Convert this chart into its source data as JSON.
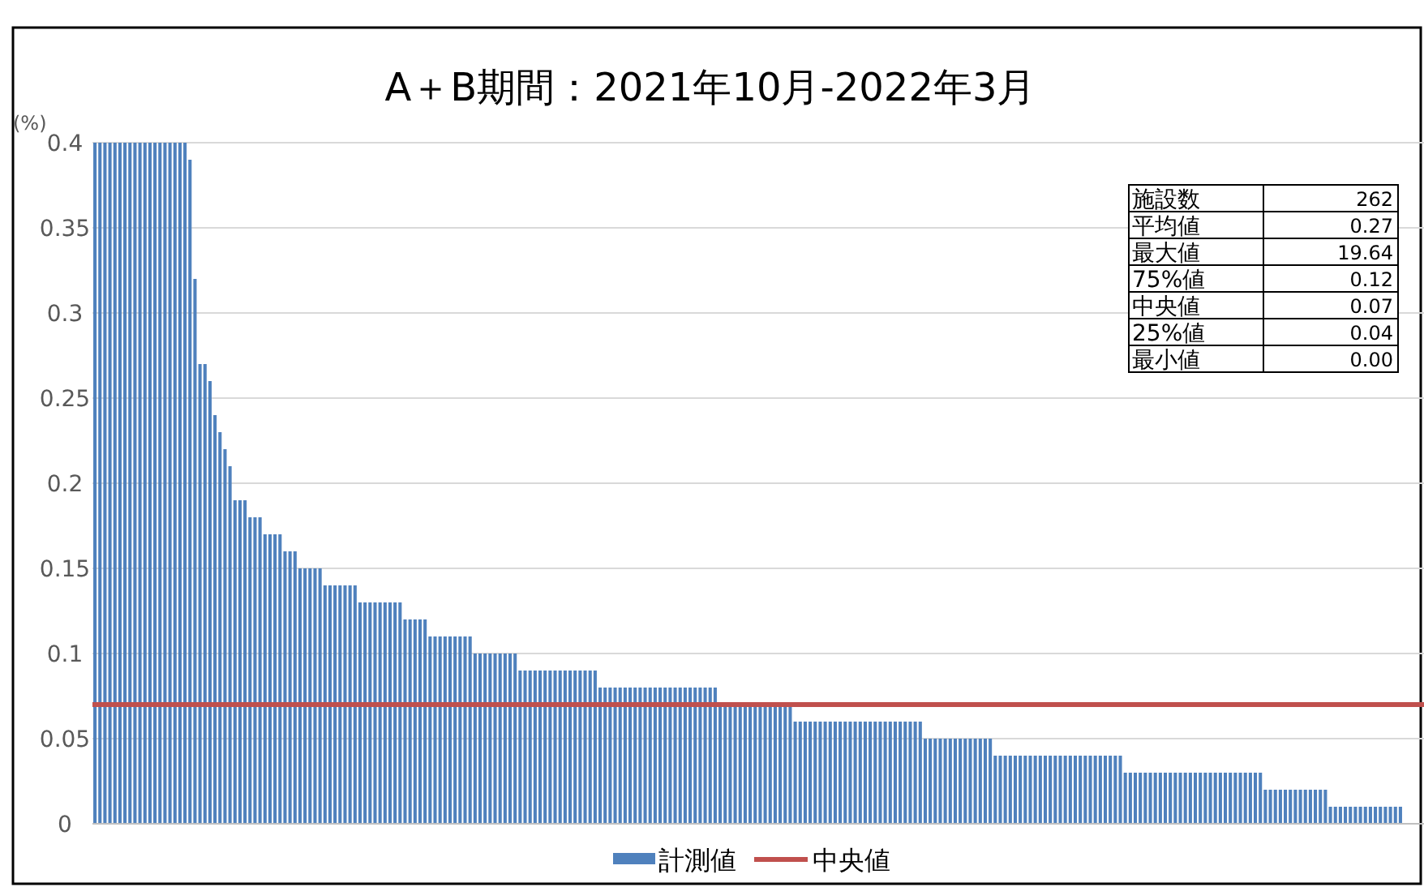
{
  "chart_data": {
    "type": "bar",
    "title": "A＋B期間：2021年10月-2022年3月",
    "ylabel": "(%)",
    "categories": [
      null,
      null,
      null,
      null,
      null,
      null,
      null,
      null,
      null,
      null,
      null,
      null,
      null,
      null,
      null,
      null,
      null,
      null,
      null,
      null,
      null,
      null,
      null,
      null,
      null,
      null,
      null,
      null,
      null,
      null,
      null,
      null,
      null,
      null,
      null,
      null,
      null,
      null,
      null,
      null,
      null,
      null,
      null,
      null,
      null,
      null,
      null,
      null,
      null,
      null,
      null,
      null,
      null,
      null,
      null,
      null,
      null,
      null,
      null,
      null,
      null,
      null,
      null,
      null,
      null,
      null,
      null,
      null,
      null,
      null,
      null,
      null,
      null,
      null,
      null,
      null,
      null,
      null,
      null,
      null,
      null,
      null,
      null,
      null,
      null,
      null,
      null,
      null,
      null,
      null,
      null,
      null,
      null,
      null,
      null,
      null,
      null,
      null,
      null,
      null,
      null,
      null,
      null,
      null,
      null,
      null,
      null,
      null,
      null,
      null,
      null,
      null,
      null,
      null,
      null,
      null,
      null,
      null,
      null,
      null,
      null,
      null,
      null,
      null,
      null,
      null,
      null,
      null,
      null,
      null,
      null,
      null,
      null,
      null,
      null,
      null,
      null,
      null,
      null,
      null,
      null,
      null,
      null,
      null,
      null,
      null,
      null,
      null,
      null,
      null,
      null,
      null,
      null,
      null,
      null,
      null,
      null,
      null,
      null,
      null,
      null,
      null,
      null,
      null,
      null,
      null,
      null,
      null,
      null,
      null,
      null,
      null,
      null,
      null,
      null,
      null,
      null,
      null,
      null,
      null,
      null,
      null,
      null,
      null,
      null,
      null,
      null,
      null,
      null,
      null,
      null,
      null,
      null,
      null,
      null,
      null,
      null,
      null,
      null,
      null,
      null,
      null,
      null,
      null,
      null,
      null,
      null,
      null,
      null,
      null,
      null,
      null,
      null,
      null,
      null,
      null,
      null,
      null,
      null,
      null,
      null,
      null,
      null,
      null,
      null,
      null,
      null,
      null,
      null,
      null,
      null,
      null,
      null,
      null,
      null,
      null,
      null,
      null,
      null,
      null,
      null,
      null,
      null,
      null,
      null,
      null,
      null,
      null,
      null,
      null,
      null,
      null,
      null,
      null,
      null,
      null,
      null,
      null,
      null,
      null,
      null,
      null
    ],
    "series": [
      {
        "name": "計測値",
        "color": "#4f81bd",
        "values": [
          0.4,
          0.4,
          0.4,
          0.4,
          0.4,
          0.4,
          0.4,
          0.4,
          0.4,
          0.4,
          0.4,
          0.4,
          0.4,
          0.4,
          0.4,
          0.4,
          0.4,
          0.4,
          0.4,
          0.39,
          0.32,
          0.27,
          0.27,
          0.26,
          0.24,
          0.23,
          0.22,
          0.21,
          0.19,
          0.19,
          0.19,
          0.18,
          0.18,
          0.18,
          0.17,
          0.17,
          0.17,
          0.17,
          0.16,
          0.16,
          0.16,
          0.15,
          0.15,
          0.15,
          0.15,
          0.15,
          0.14,
          0.14,
          0.14,
          0.14,
          0.14,
          0.14,
          0.14,
          0.13,
          0.13,
          0.13,
          0.13,
          0.13,
          0.13,
          0.13,
          0.13,
          0.13,
          0.12,
          0.12,
          0.12,
          0.12,
          0.12,
          0.11,
          0.11,
          0.11,
          0.11,
          0.11,
          0.11,
          0.11,
          0.11,
          0.11,
          0.1,
          0.1,
          0.1,
          0.1,
          0.1,
          0.1,
          0.1,
          0.1,
          0.1,
          0.09,
          0.09,
          0.09,
          0.09,
          0.09,
          0.09,
          0.09,
          0.09,
          0.09,
          0.09,
          0.09,
          0.09,
          0.09,
          0.09,
          0.09,
          0.09,
          0.08,
          0.08,
          0.08,
          0.08,
          0.08,
          0.08,
          0.08,
          0.08,
          0.08,
          0.08,
          0.08,
          0.08,
          0.08,
          0.08,
          0.08,
          0.08,
          0.08,
          0.08,
          0.08,
          0.08,
          0.08,
          0.08,
          0.08,
          0.08,
          0.07,
          0.07,
          0.07,
          0.07,
          0.07,
          0.07,
          0.07,
          0.07,
          0.07,
          0.07,
          0.07,
          0.07,
          0.07,
          0.07,
          0.07,
          0.06,
          0.06,
          0.06,
          0.06,
          0.06,
          0.06,
          0.06,
          0.06,
          0.06,
          0.06,
          0.06,
          0.06,
          0.06,
          0.06,
          0.06,
          0.06,
          0.06,
          0.06,
          0.06,
          0.06,
          0.06,
          0.06,
          0.06,
          0.06,
          0.06,
          0.06,
          0.05,
          0.05,
          0.05,
          0.05,
          0.05,
          0.05,
          0.05,
          0.05,
          0.05,
          0.05,
          0.05,
          0.05,
          0.05,
          0.05,
          0.04,
          0.04,
          0.04,
          0.04,
          0.04,
          0.04,
          0.04,
          0.04,
          0.04,
          0.04,
          0.04,
          0.04,
          0.04,
          0.04,
          0.04,
          0.04,
          0.04,
          0.04,
          0.04,
          0.04,
          0.04,
          0.04,
          0.04,
          0.04,
          0.04,
          0.04,
          0.03,
          0.03,
          0.03,
          0.03,
          0.03,
          0.03,
          0.03,
          0.03,
          0.03,
          0.03,
          0.03,
          0.03,
          0.03,
          0.03,
          0.03,
          0.03,
          0.03,
          0.03,
          0.03,
          0.03,
          0.03,
          0.03,
          0.03,
          0.03,
          0.03,
          0.03,
          0.03,
          0.03,
          0.02,
          0.02,
          0.02,
          0.02,
          0.02,
          0.02,
          0.02,
          0.02,
          0.02,
          0.02,
          0.02,
          0.02,
          0.02,
          0.01,
          0.01,
          0.01,
          0.01,
          0.01,
          0.01,
          0.01,
          0.01,
          0.01,
          0.01,
          0.01,
          0.01,
          0.01,
          0.01,
          0.01
        ]
      }
    ],
    "ylim": [
      0,
      0.4
    ],
    "yticks": [
      0,
      0.05,
      0.1,
      0.15,
      0.2,
      0.25,
      0.3,
      0.35,
      0.4
    ],
    "grid": "y",
    "legend": "bottom",
    "ref_lines": [
      {
        "axis": "y",
        "value": 0.07,
        "label": "中央値",
        "color": "#c0504d"
      }
    ],
    "annotations": [
      "施設数",
      "262",
      "平均値",
      "0.27",
      "最大値",
      "19.64",
      "75%値",
      "0.12",
      "中央値",
      "0.07",
      "25%値",
      "0.04",
      "最小値",
      "0.00"
    ]
  }
}
